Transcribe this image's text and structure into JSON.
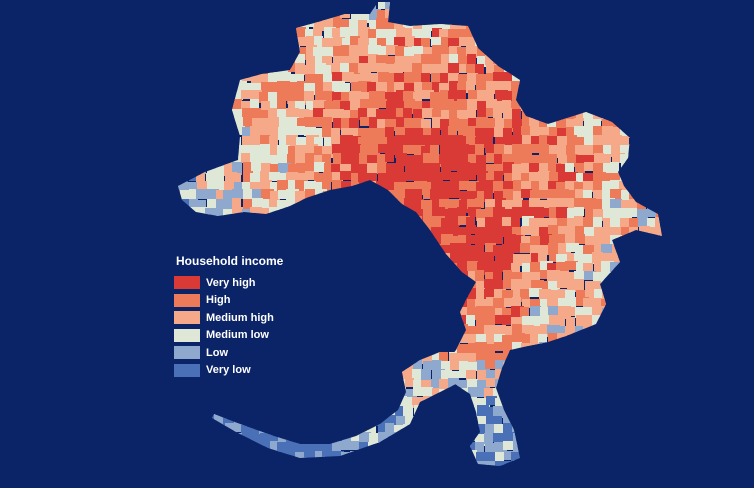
{
  "map": {
    "background_color": "#0b2468",
    "categories": [
      {
        "key": "very_high",
        "color": "#d93a35"
      },
      {
        "key": "high",
        "color": "#ed7b5a"
      },
      {
        "key": "medium_high",
        "color": "#f5a989"
      },
      {
        "key": "medium_low",
        "color": "#dfe7d6"
      },
      {
        "key": "low",
        "color": "#8fa8cd"
      },
      {
        "key": "very_low",
        "color": "#4a70b8"
      }
    ]
  },
  "legend": {
    "title": "Household income",
    "items": [
      {
        "label": "Very high",
        "color": "#d93a35"
      },
      {
        "label": "High",
        "color": "#ed7b5a"
      },
      {
        "label": "Medium high",
        "color": "#f5a989"
      },
      {
        "label": "Medium low",
        "color": "#dfe7d6"
      },
      {
        "label": "Low",
        "color": "#8fa8cd"
      },
      {
        "label": "Very low",
        "color": "#4a70b8"
      }
    ]
  }
}
